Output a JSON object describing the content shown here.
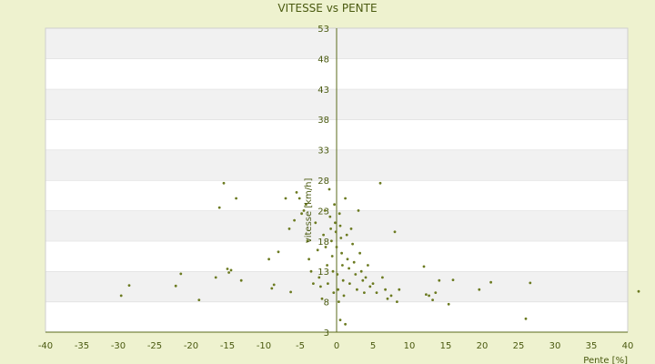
{
  "chart_data": {
    "type": "scatter",
    "title": "VITESSE vs PENTE",
    "xlabel": "Pente [%]",
    "ylabel": "vitesse [km/h]",
    "xlim": [
      -40,
      40
    ],
    "ylim": [
      3,
      53
    ],
    "xticks": [
      -40,
      -35,
      -30,
      -25,
      -20,
      -15,
      -10,
      -5,
      0,
      5,
      10,
      15,
      20,
      25,
      30,
      35,
      40
    ],
    "yticks": [
      3,
      8,
      13,
      18,
      23,
      28,
      33,
      38,
      43,
      48,
      53
    ],
    "grid": "horizontal alternating bands",
    "colors": {
      "background": "#eef2cf",
      "band_light": "#ffffff",
      "band_dark": "#f1f1f1",
      "axis": "#5a6a1a",
      "marker": "#6b7a20"
    },
    "series": [
      {
        "points": [
          [
            -29.6,
            9.0
          ],
          [
            -28.5,
            10.7
          ],
          [
            -22.1,
            10.6
          ],
          [
            -21.4,
            12.6
          ],
          [
            -18.9,
            8.3
          ],
          [
            -16.6,
            12.0
          ],
          [
            -16.1,
            23.5
          ],
          [
            -15.5,
            27.5
          ],
          [
            -15.0,
            13.4
          ],
          [
            -14.8,
            12.8
          ],
          [
            -14.5,
            13.2
          ],
          [
            -13.8,
            25.0
          ],
          [
            -13.1,
            11.5
          ],
          [
            -9.3,
            15.0
          ],
          [
            -8.9,
            10.2
          ],
          [
            -8.6,
            10.8
          ],
          [
            -8.0,
            16.2
          ],
          [
            -7.0,
            25.0
          ],
          [
            -6.5,
            20.0
          ],
          [
            -6.3,
            9.6
          ],
          [
            -5.8,
            21.4
          ],
          [
            -5.5,
            26.0
          ],
          [
            -5.1,
            25.0
          ],
          [
            -4.8,
            22.5
          ],
          [
            -4.5,
            23.0
          ],
          [
            -4.2,
            24.0
          ],
          [
            -4.0,
            18.0
          ],
          [
            -3.8,
            15.0
          ],
          [
            -3.5,
            13.0
          ],
          [
            -3.2,
            11.0
          ],
          [
            -2.9,
            21.0
          ],
          [
            -2.6,
            16.5
          ],
          [
            -2.4,
            12.0
          ],
          [
            -2.2,
            10.5
          ],
          [
            -2.0,
            8.5
          ],
          [
            -1.8,
            19.0
          ],
          [
            -1.6,
            23.0
          ],
          [
            -1.5,
            17.0
          ],
          [
            -1.3,
            14.0
          ],
          [
            -1.2,
            11.0
          ],
          [
            -1.0,
            26.5
          ],
          [
            -0.9,
            22.0
          ],
          [
            -0.8,
            20.0
          ],
          [
            -0.7,
            18.0
          ],
          [
            -0.6,
            15.5
          ],
          [
            -0.5,
            13.0
          ],
          [
            -0.4,
            9.5
          ],
          [
            -0.3,
            24.0
          ],
          [
            -0.2,
            21.0
          ],
          [
            -0.1,
            19.5
          ],
          [
            0.0,
            17.0
          ],
          [
            0.1,
            12.5
          ],
          [
            0.2,
            10.0
          ],
          [
            0.3,
            8.0
          ],
          [
            0.4,
            22.5
          ],
          [
            0.5,
            20.5
          ],
          [
            0.6,
            18.5
          ],
          [
            0.7,
            16.0
          ],
          [
            0.8,
            14.0
          ],
          [
            0.9,
            11.5
          ],
          [
            1.0,
            9.0
          ],
          [
            1.2,
            25.0
          ],
          [
            1.4,
            19.0
          ],
          [
            1.5,
            15.0
          ],
          [
            1.7,
            13.5
          ],
          [
            1.8,
            11.0
          ],
          [
            2.0,
            20.0
          ],
          [
            2.2,
            17.5
          ],
          [
            2.4,
            14.5
          ],
          [
            2.6,
            12.5
          ],
          [
            2.8,
            10.0
          ],
          [
            3.0,
            23.0
          ],
          [
            3.2,
            16.0
          ],
          [
            3.4,
            13.0
          ],
          [
            3.6,
            11.5
          ],
          [
            3.8,
            9.5
          ],
          [
            4.0,
            12.0
          ],
          [
            4.3,
            14.0
          ],
          [
            4.6,
            10.5
          ],
          [
            5.0,
            11.0
          ],
          [
            5.5,
            9.5
          ],
          [
            6.0,
            27.5
          ],
          [
            6.3,
            12.0
          ],
          [
            6.7,
            10.0
          ],
          [
            7.0,
            8.5
          ],
          [
            7.5,
            9.0
          ],
          [
            8.0,
            19.5
          ],
          [
            8.3,
            8.0
          ],
          [
            8.6,
            10.0
          ],
          [
            0.5,
            5.0
          ],
          [
            1.2,
            4.3
          ],
          [
            12.0,
            13.8
          ],
          [
            12.3,
            9.2
          ],
          [
            12.7,
            9.0
          ],
          [
            13.2,
            8.3
          ],
          [
            13.6,
            9.5
          ],
          [
            14.1,
            11.5
          ],
          [
            15.4,
            7.6
          ],
          [
            16.0,
            11.6
          ],
          [
            19.6,
            10.0
          ],
          [
            21.2,
            11.2
          ],
          [
            26.0,
            5.2
          ],
          [
            26.6,
            11.1
          ],
          [
            41.5,
            9.7
          ]
        ]
      }
    ]
  }
}
